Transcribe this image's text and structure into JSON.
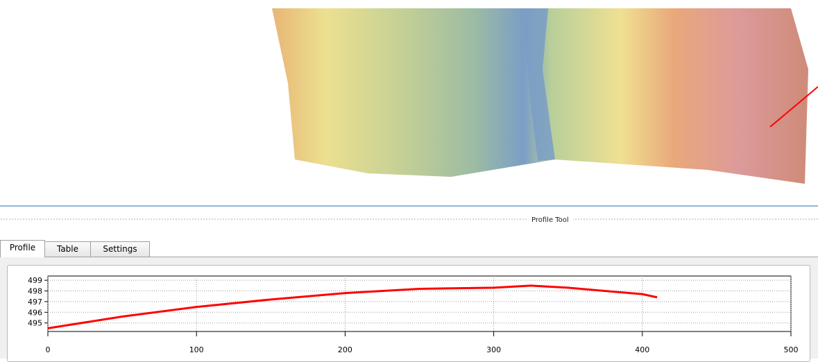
{
  "panel": {
    "title": "Profile Tool",
    "tabs": [
      "Profile",
      "Table",
      "Settings"
    ]
  },
  "chart_data": {
    "type": "line",
    "x": [
      0,
      50,
      100,
      150,
      200,
      250,
      300,
      325,
      350,
      400,
      410
    ],
    "values": [
      494.5,
      495.6,
      496.5,
      497.2,
      497.8,
      498.2,
      498.3,
      498.5,
      498.3,
      497.7,
      497.4
    ],
    "color": "#ff0000",
    "xlim": [
      0,
      500
    ],
    "xticks": [
      0,
      100,
      200,
      300,
      400,
      500
    ],
    "ylim": [
      494.2,
      499.4
    ],
    "yticks": [
      495,
      496,
      497,
      498,
      499
    ],
    "grid": true
  }
}
